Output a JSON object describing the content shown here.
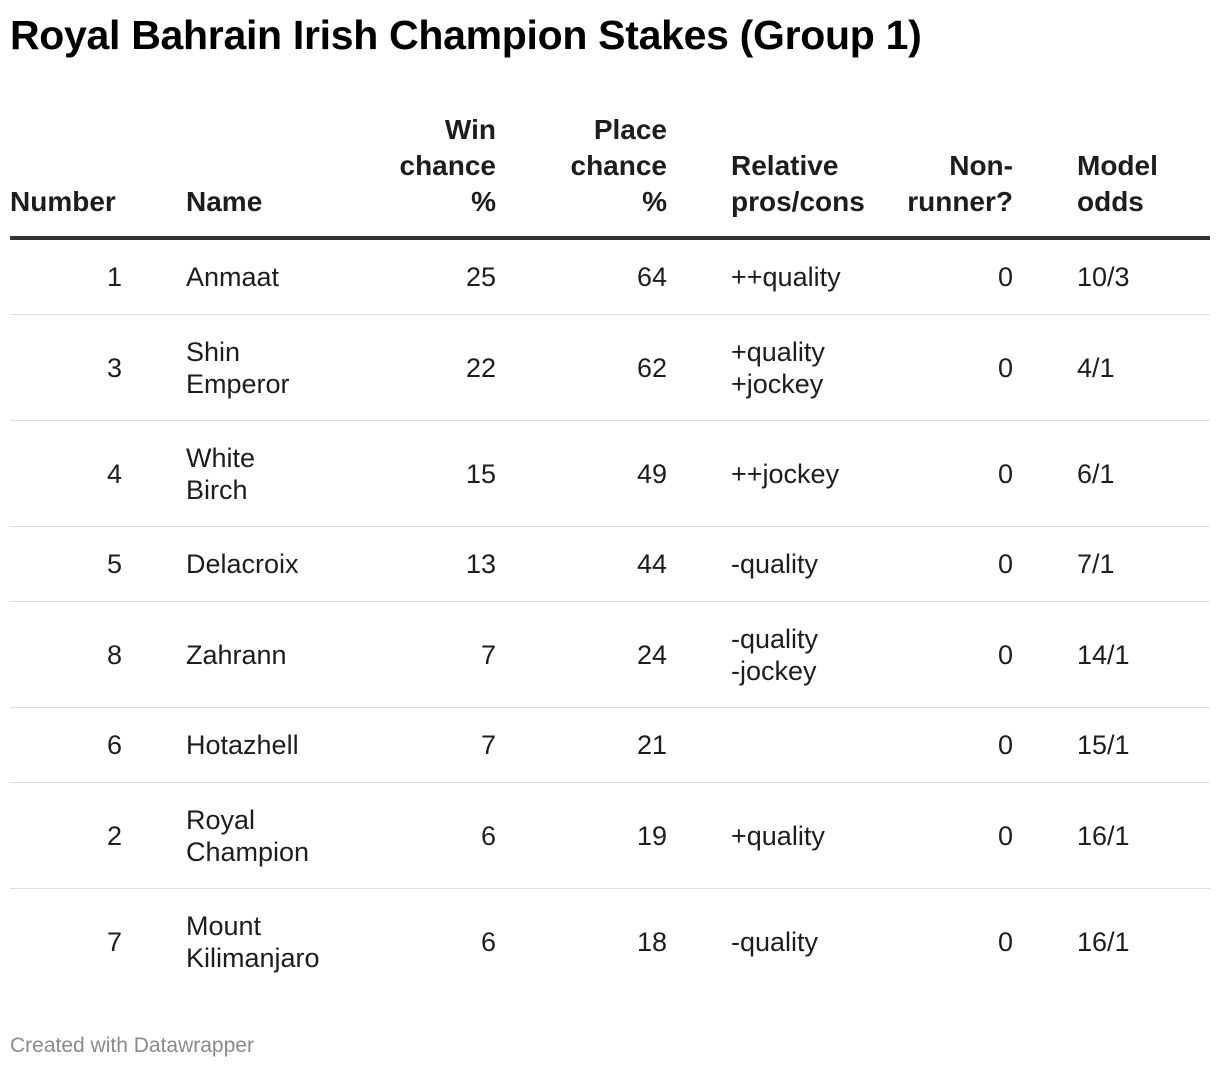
{
  "title": "Royal Bahrain Irish Champion Stakes (Group 1)",
  "chart_data": {
    "type": "table",
    "columns": [
      {
        "key": "number",
        "label_lines": [
          "Number"
        ]
      },
      {
        "key": "name",
        "label_lines": [
          "Name"
        ]
      },
      {
        "key": "win",
        "label_lines": [
          "Win",
          "chance",
          "%"
        ]
      },
      {
        "key": "place",
        "label_lines": [
          "Place",
          "chance",
          "%"
        ]
      },
      {
        "key": "proscons",
        "label_lines": [
          "Relative",
          "pros/cons"
        ]
      },
      {
        "key": "nonrunner",
        "label_lines": [
          "Non-",
          "runner?"
        ]
      },
      {
        "key": "odds",
        "label_lines": [
          "Model",
          "odds"
        ]
      }
    ],
    "rows": [
      {
        "number": "1",
        "name": [
          "Anmaat"
        ],
        "win": "25",
        "place": "64",
        "proscons": [
          "++quality"
        ],
        "nonrunner": "0",
        "odds": "10/3"
      },
      {
        "number": "3",
        "name": [
          "Shin",
          "Emperor"
        ],
        "win": "22",
        "place": "62",
        "proscons": [
          "+quality",
          "+jockey"
        ],
        "nonrunner": "0",
        "odds": "4/1"
      },
      {
        "number": "4",
        "name": [
          "White",
          "Birch"
        ],
        "win": "15",
        "place": "49",
        "proscons": [
          "++jockey"
        ],
        "nonrunner": "0",
        "odds": "6/1"
      },
      {
        "number": "5",
        "name": [
          "Delacroix"
        ],
        "win": "13",
        "place": "44",
        "proscons": [
          "-quality"
        ],
        "nonrunner": "0",
        "odds": "7/1"
      },
      {
        "number": "8",
        "name": [
          "Zahrann"
        ],
        "win": "7",
        "place": "24",
        "proscons": [
          "-quality",
          "-jockey"
        ],
        "nonrunner": "0",
        "odds": "14/1"
      },
      {
        "number": "6",
        "name": [
          "Hotazhell"
        ],
        "win": "7",
        "place": "21",
        "proscons": [],
        "nonrunner": "0",
        "odds": "15/1"
      },
      {
        "number": "2",
        "name": [
          "Royal",
          "Champion"
        ],
        "win": "6",
        "place": "19",
        "proscons": [
          "+quality"
        ],
        "nonrunner": "0",
        "odds": "16/1"
      },
      {
        "number": "7",
        "name": [
          "Mount",
          "Kilimanjaro"
        ],
        "win": "6",
        "place": "18",
        "proscons": [
          "-quality"
        ],
        "nonrunner": "0",
        "odds": "16/1"
      }
    ]
  },
  "footer": {
    "credit": "Created with Datawrapper"
  },
  "colors": {
    "text": "#1d1d1d",
    "header_rule": "#333333",
    "row_rule": "#dedede",
    "credit": "#8a8a8a"
  }
}
